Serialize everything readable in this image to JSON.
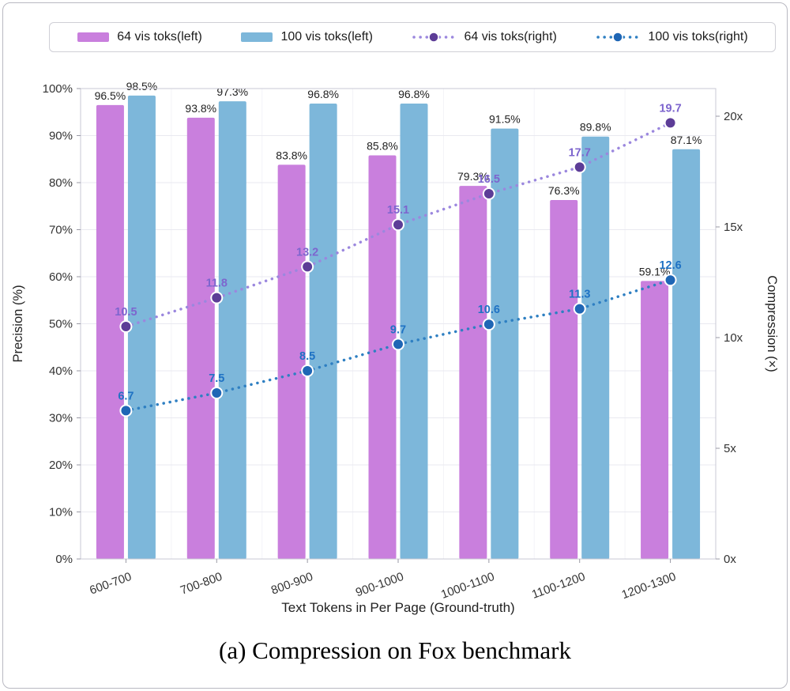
{
  "caption": "(a) Compression on Fox benchmark",
  "chart_data": {
    "type": "bar+line",
    "title": "",
    "xlabel": "Text Tokens in Per Page (Ground-truth)",
    "ylabel_left": "Precision (%)",
    "ylabel_right": "Compression (×)",
    "categories": [
      "600-700",
      "700-800",
      "800-900",
      "900-1000",
      "1000-1100",
      "1100-1200",
      "1200-1300"
    ],
    "yticks_left": [
      "0%",
      "10%",
      "20%",
      "30%",
      "40%",
      "50%",
      "60%",
      "70%",
      "80%",
      "90%",
      "100%"
    ],
    "yticks_right": [
      "0x",
      "5x",
      "10x",
      "15x",
      "20x"
    ],
    "ylim_left": [
      0,
      100
    ],
    "ylim_right": [
      0,
      20
    ],
    "grid": true,
    "legend_position": "top",
    "bar_series": [
      {
        "name": "64 vis toks(left)",
        "axis": "left",
        "color": "#c97fdd",
        "values": [
          96.5,
          93.8,
          83.8,
          85.8,
          79.3,
          76.3,
          59.1
        ],
        "labels": [
          "96.5%",
          "93.8%",
          "83.8%",
          "85.8%",
          "79.3%",
          "76.3%",
          "59.1%"
        ]
      },
      {
        "name": "100 vis toks(left)",
        "axis": "left",
        "color": "#7db7da",
        "values": [
          98.5,
          97.3,
          96.8,
          96.8,
          91.5,
          89.8,
          87.1
        ],
        "labels": [
          "98.5%",
          "97.3%",
          "96.8%",
          "96.8%",
          "91.5%",
          "89.8%",
          "87.1%"
        ]
      }
    ],
    "line_series": [
      {
        "name": "64 vis toks(right)",
        "axis": "right",
        "color": "#5d3d97",
        "line_color": "#9b87de",
        "label_color": "#7d65ce",
        "values": [
          10.5,
          11.8,
          13.2,
          15.1,
          16.5,
          17.7,
          19.7
        ],
        "labels": [
          "10.5",
          "11.8",
          "13.2",
          "15.1",
          "16.5",
          "17.7",
          "19.7"
        ]
      },
      {
        "name": "100 vis toks(right)",
        "axis": "right",
        "color": "#1f66b5",
        "line_color": "#2e7fc2",
        "label_color": "#1f72c4",
        "values": [
          6.7,
          7.5,
          8.5,
          9.7,
          10.6,
          11.3,
          12.6
        ],
        "labels": [
          "6.7",
          "7.5",
          "8.5",
          "9.7",
          "10.6",
          "11.3",
          "12.6"
        ]
      }
    ]
  }
}
